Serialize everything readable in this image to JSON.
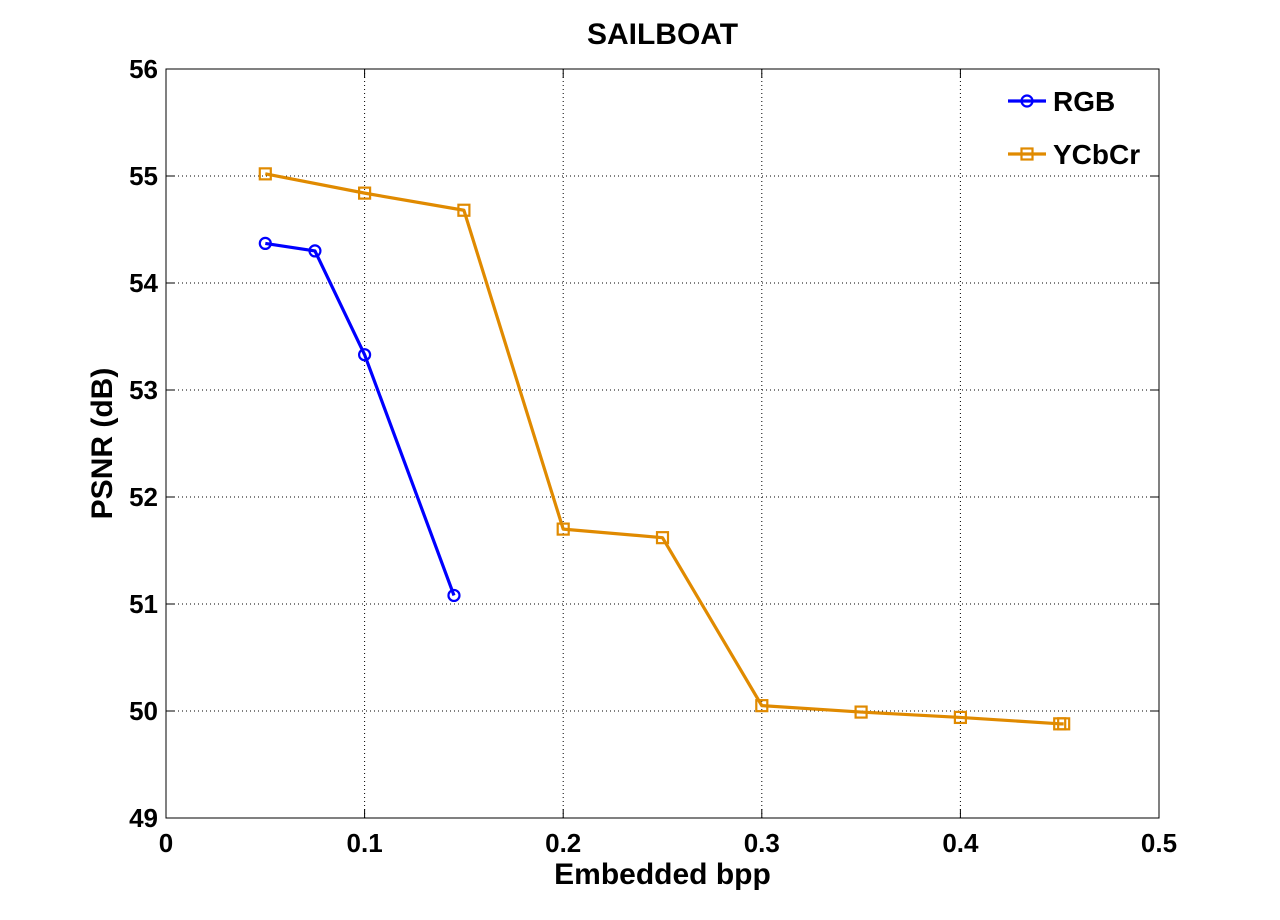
{
  "chart_data": {
    "type": "line",
    "title": "SAILBOAT",
    "xlabel": "Embedded bpp",
    "ylabel": "PSNR (dB)",
    "xlim": [
      0,
      0.5
    ],
    "ylim": [
      49,
      56
    ],
    "xticks": [
      0,
      0.1,
      0.2,
      0.3,
      0.4,
      0.5
    ],
    "xtick_labels": [
      "0",
      "0.1",
      "0.2",
      "0.3",
      "0.4",
      "0.5"
    ],
    "yticks": [
      49,
      50,
      51,
      52,
      53,
      54,
      55,
      56
    ],
    "ytick_labels": [
      "49",
      "50",
      "51",
      "52",
      "53",
      "54",
      "55",
      "56"
    ],
    "grid": true,
    "legend_position": "top-right",
    "series": [
      {
        "name": "RGB",
        "color": "#0000ff",
        "marker": "circle",
        "x": [
          0.05,
          0.075,
          0.1,
          0.145
        ],
        "y": [
          54.37,
          54.3,
          53.33,
          51.08
        ]
      },
      {
        "name": "YCbCr",
        "color": "#e08a00",
        "marker": "square",
        "x": [
          0.05,
          0.1,
          0.15,
          0.2,
          0.25,
          0.3,
          0.35,
          0.4,
          0.45,
          0.452
        ],
        "y": [
          55.02,
          54.84,
          54.68,
          51.7,
          51.62,
          50.05,
          49.99,
          49.94,
          49.88,
          49.88
        ]
      }
    ]
  }
}
